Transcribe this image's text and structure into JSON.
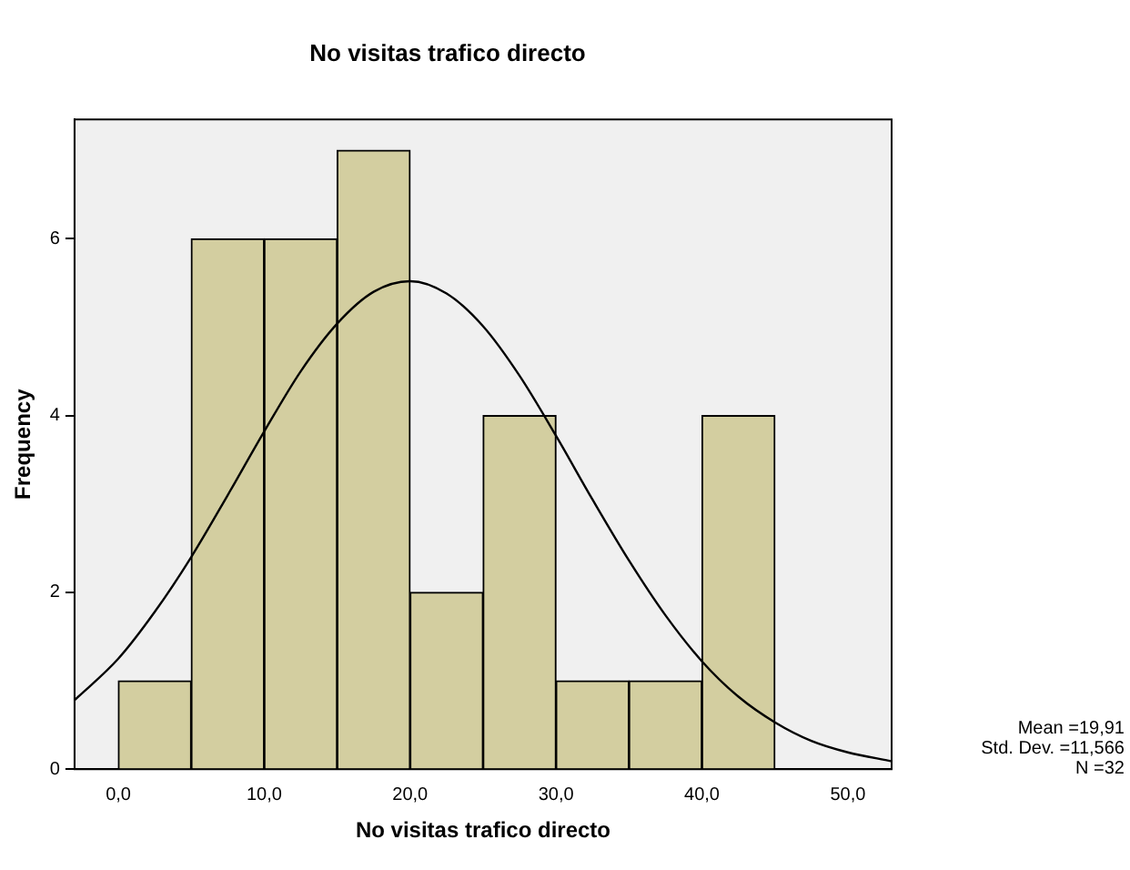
{
  "chart_data": {
    "type": "histogram",
    "title": "No visitas trafico directo",
    "xlabel": "No visitas trafico directo",
    "ylabel": "Frequency",
    "bins": [
      0,
      5,
      10,
      15,
      20,
      25,
      30,
      35,
      40,
      45
    ],
    "values": [
      1,
      6,
      6,
      7,
      2,
      4,
      1,
      1,
      4
    ],
    "color": "#d3cea0",
    "series": [
      {
        "type": "line",
        "color": "#000000",
        "x": [
          -3,
          0,
          2.5,
          5,
          7.5,
          10,
          12.5,
          15,
          17.5,
          20,
          22.5,
          25,
          27.5,
          30,
          32.5,
          35,
          37.5,
          40,
          42.5,
          45,
          47.5,
          50,
          53
        ],
        "values": [
          0.78,
          1.25,
          1.78,
          2.4,
          3.1,
          3.82,
          4.5,
          5.04,
          5.4,
          5.52,
          5.38,
          5.01,
          4.45,
          3.77,
          3.05,
          2.36,
          1.74,
          1.22,
          0.82,
          0.53,
          0.32,
          0.19,
          0.09
        ]
      }
    ],
    "xlim": [
      -3,
      53
    ],
    "xticks": [
      {
        "value": 0,
        "label": "0,0"
      },
      {
        "value": 10,
        "label": "10,0"
      },
      {
        "value": 20,
        "label": "20,0"
      },
      {
        "value": 30,
        "label": "30,0"
      },
      {
        "value": 40,
        "label": "40,0"
      },
      {
        "value": 50,
        "label": "50,0"
      }
    ],
    "ylim": [
      0,
      7.35
    ],
    "yticks": [
      0,
      2,
      4,
      6
    ],
    "grid": false,
    "legend": false,
    "annotations": [
      "Mean =19,91",
      "Std. Dev. =11,566",
      "N =32"
    ]
  }
}
